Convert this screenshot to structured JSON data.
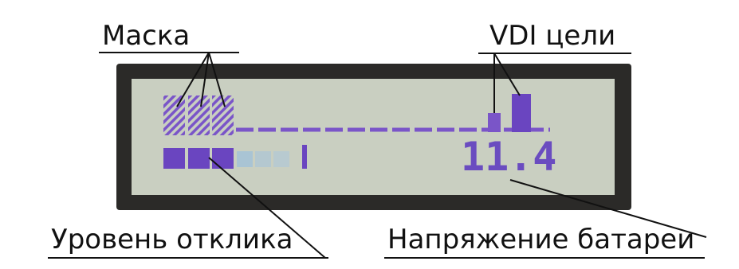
{
  "labels": {
    "mask": "Маска",
    "vdi": "VDI цели",
    "response": "Уровень отклика",
    "battery": "Напряжение батареи"
  },
  "display": {
    "voltage": "11.4"
  }
}
